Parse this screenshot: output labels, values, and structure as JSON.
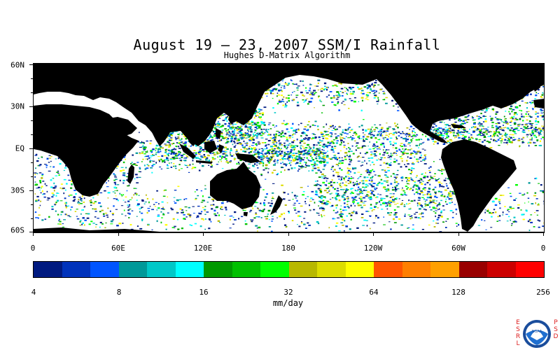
{
  "title": "August 19 – 23, 2007 SSM/I Rainfall",
  "subtitle": "Hughes D-Matrix Algorithm",
  "lat_labels": [
    "60N",
    "30N",
    "EQ",
    "30S",
    "60S"
  ],
  "lon_labels": [
    "0",
    "60E",
    "120E",
    "180",
    "120W",
    "60W",
    "0"
  ],
  "colorbar": {
    "colors": [
      "#001a80",
      "#0033bb",
      "#0055ff",
      "#009999",
      "#00c8c8",
      "#00ffff",
      "#009900",
      "#00c000",
      "#00ff00",
      "#b8b800",
      "#dddd00",
      "#ffff00",
      "#ff5500",
      "#ff7f00",
      "#ffa000",
      "#990000",
      "#cc0000",
      "#ff0000"
    ],
    "tick_labels": [
      "4",
      "8",
      "16",
      "32",
      "64",
      "128",
      "256"
    ],
    "units": "mm/day"
  },
  "map": {
    "projection": "equirectangular",
    "lon_range": [
      0,
      360
    ],
    "lat_range": [
      -60,
      60
    ],
    "land_color": "#000000",
    "ocean_color": "#ffffff"
  },
  "logo": {
    "left_text": "ESRL",
    "right_text": "PSD",
    "center_text": "NOAA"
  }
}
